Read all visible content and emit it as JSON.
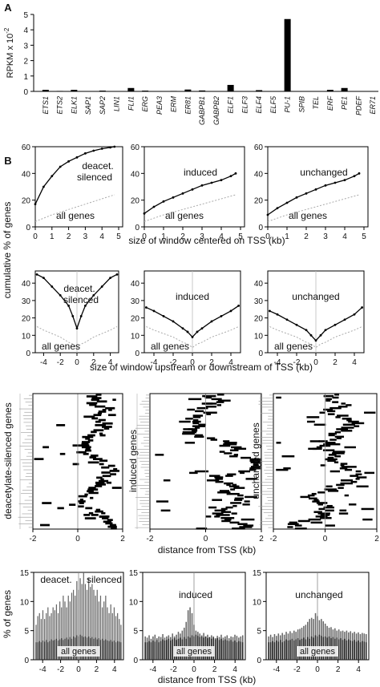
{
  "panels": {
    "a": "A",
    "b": "B"
  },
  "chart_data": [
    {
      "type": "bar",
      "id": "rpkm",
      "ylabel": "RPKM x 10",
      "ylabel_exp": "-2",
      "ylim": [
        0,
        5
      ],
      "yticks": [
        0,
        1,
        2,
        3,
        4,
        5
      ],
      "categories": [
        "ETS1",
        "ETS2",
        "ELK1",
        "SAP1",
        "SAP2",
        "LIN1",
        "FLI1",
        "ERG",
        "PEA3",
        "ERM",
        "ER81",
        "GABPB1",
        "GABPB2",
        "ELF1",
        "ELF3",
        "ELF4",
        "ELF5",
        "PU-1",
        "SPIB",
        "TEL",
        "ERF",
        "PE1",
        "PDEF",
        "ER71"
      ],
      "values": [
        0.1,
        0.03,
        0.1,
        0.02,
        0.05,
        0.02,
        0.22,
        0.05,
        0.02,
        0.03,
        0.12,
        0.06,
        0.02,
        0.42,
        0.02,
        0.08,
        0.02,
        4.7,
        0.02,
        0.02,
        0.1,
        0.22,
        0.02,
        0.02
      ]
    },
    {
      "type": "line",
      "id": "cum1",
      "xlabel": "size of window centered on TSS (kb)",
      "ylabel": "cumulative % of genes",
      "xlim": [
        0,
        5
      ],
      "ylim": [
        0,
        60
      ],
      "xticks": [
        0,
        1,
        2,
        3,
        4,
        5
      ],
      "yticks": [
        0,
        20,
        40,
        60
      ],
      "panels": [
        {
          "name": "deacet. silenced",
          "labels": [
            "deacet.",
            "silenced"
          ],
          "others": "all genes",
          "x": [
            0,
            0.5,
            1,
            1.5,
            2,
            2.5,
            3,
            3.5,
            4,
            4.5,
            4.75
          ],
          "values": [
            17,
            30,
            38,
            45,
            49,
            52,
            55,
            57,
            58.5,
            59.5,
            60
          ],
          "others_values": [
            4,
            6.5,
            9,
            11,
            13,
            15,
            17,
            19,
            21,
            23,
            24
          ]
        },
        {
          "name": "induced",
          "labels": [
            "induced"
          ],
          "others": "all genes",
          "x": [
            0,
            0.5,
            1,
            1.5,
            2,
            2.5,
            3,
            3.5,
            4,
            4.5,
            4.75
          ],
          "values": [
            10,
            15,
            19,
            22,
            25,
            28,
            31,
            33,
            35,
            38,
            40
          ],
          "others_values": [
            4,
            6.5,
            9,
            11,
            13,
            15,
            17,
            19,
            21,
            23,
            24
          ]
        },
        {
          "name": "unchanged",
          "labels": [
            "unchanged"
          ],
          "others": "all genes",
          "x": [
            0,
            0.5,
            1,
            1.5,
            2,
            2.5,
            3,
            3.5,
            4,
            4.5,
            4.75
          ],
          "values": [
            9,
            14,
            18,
            22,
            25,
            28,
            31,
            33,
            35,
            38,
            40
          ],
          "others_values": [
            4,
            6.5,
            9,
            11,
            13,
            15,
            17,
            19,
            21,
            23,
            24
          ]
        }
      ]
    },
    {
      "type": "line",
      "id": "cum2",
      "xlabel": "size of window upstream or downstream of TSS (kb)",
      "xlim": [
        -5,
        5
      ],
      "ylim": [
        0,
        47
      ],
      "xticks": [
        -4,
        -2,
        0,
        2,
        4
      ],
      "yticks": [
        0,
        10,
        20,
        30,
        40
      ],
      "panels": [
        {
          "name": "deacet. silenced",
          "labels": [
            "deacet.",
            "silenced"
          ],
          "others": "all genes",
          "x": [
            -4.8,
            -4,
            -3,
            -2,
            -1,
            -0.5,
            0,
            0.5,
            1,
            2,
            3,
            4,
            4.8
          ],
          "values": [
            45,
            43,
            38,
            33,
            27,
            21,
            14,
            21,
            27,
            33,
            38,
            43,
            45
          ],
          "others_values": [
            15,
            13,
            11,
            9,
            6,
            5,
            3,
            5,
            6,
            9,
            11,
            13,
            15
          ]
        },
        {
          "name": "induced",
          "labels": [
            "induced"
          ],
          "others": "all genes",
          "x": [
            -4.8,
            -4,
            -3,
            -2,
            -1,
            -0.5,
            0,
            0.5,
            1,
            2,
            3,
            4,
            4.8
          ],
          "values": [
            26,
            24,
            21,
            18,
            14,
            12,
            9,
            12,
            14,
            18,
            21,
            24,
            27
          ],
          "others_values": [
            15,
            13,
            11,
            9,
            6,
            5,
            3,
            5,
            6,
            9,
            11,
            13,
            15
          ]
        },
        {
          "name": "unchanged",
          "labels": [
            "unchanged"
          ],
          "others": "all genes",
          "x": [
            -4.8,
            -4,
            -3,
            -2,
            -1,
            -0.5,
            0,
            0.5,
            1,
            2,
            3,
            4,
            4.8
          ],
          "values": [
            24,
            22,
            19,
            16,
            13,
            10,
            7,
            10,
            13,
            16,
            19,
            22,
            26
          ],
          "others_values": [
            15,
            13,
            11,
            9,
            6,
            5,
            3,
            5,
            6,
            9,
            11,
            13,
            15
          ]
        }
      ]
    },
    {
      "type": "heatmap",
      "id": "heat",
      "xlabel": "distance from TSS (kb)",
      "xlim": [
        -2,
        2
      ],
      "xticks": [
        -2,
        0,
        2
      ],
      "panels": [
        {
          "name": "deacetylate-silenced genes",
          "rows": 80,
          "seed": 11,
          "tick_labels": [
            "-2",
            "0",
            "2"
          ]
        },
        {
          "name": "induced genes",
          "rows": 90,
          "seed": 23,
          "tick_labels": [
            "-2",
            "0",
            "2"
          ]
        },
        {
          "name": "unchanged genes",
          "rows": 90,
          "seed": 37,
          "tick_labels": [
            "-2",
            "0",
            "2"
          ]
        }
      ]
    },
    {
      "type": "bar",
      "id": "hist",
      "xlabel": "distance from TSS (kb)",
      "ylabel": "% of genes",
      "xlim": [
        -5,
        5
      ],
      "ylim": [
        0,
        15
      ],
      "xticks": [
        -4,
        -2,
        0,
        2,
        4
      ],
      "yticks": [
        0,
        5,
        10,
        15
      ],
      "others": "all genes",
      "panels": [
        {
          "name": "deacet. silenced",
          "labels": [
            "deacet.",
            "silenced"
          ],
          "values": [
            6,
            7.5,
            8,
            7,
            8.5,
            7,
            8,
            9,
            7.5,
            8,
            9,
            8.5,
            9.5,
            8,
            10,
            9,
            11,
            10,
            9,
            11,
            10,
            11.5,
            12,
            11,
            13.5,
            12,
            14,
            13,
            15,
            13,
            12,
            14,
            12.5,
            13,
            12,
            11,
            12,
            10,
            11,
            9,
            10,
            11,
            9,
            8,
            9.5,
            8,
            9,
            7.5,
            8,
            7,
            6
          ],
          "others_values": [
            3,
            3,
            3.2,
            3,
            3.3,
            3.1,
            3.4,
            3,
            3.2,
            3.5,
            3.3,
            3.4,
            3.6,
            3.3,
            3.5,
            3.7,
            3.4,
            3.6,
            3.8,
            3.5,
            3.9,
            3.6,
            4,
            3.8,
            4.2,
            4,
            4.3,
            4.1,
            3.9,
            4,
            3.8,
            4,
            3.7,
            3.9,
            3.6,
            3.8,
            3.5,
            3.7,
            3.4,
            3.6,
            3.3,
            3.5,
            3.3,
            3.2,
            3.4,
            3.1,
            3.3,
            3,
            3.2,
            3.1,
            3
          ]
        },
        {
          "name": "induced",
          "labels": [
            "induced"
          ],
          "values": [
            4,
            3.8,
            4.2,
            3.6,
            4,
            4.3,
            3.7,
            4,
            3.9,
            4.4,
            3.8,
            4,
            4.2,
            3.9,
            4.5,
            4,
            4.3,
            4.8,
            4.5,
            5,
            5.5,
            6.5,
            8.5,
            9,
            8,
            6,
            5,
            4.8,
            4.5,
            4.2,
            4.6,
            4,
            4.3,
            3.8,
            4.2,
            4,
            3.7,
            4.1,
            3.9,
            4.3,
            3.8,
            4,
            4.2,
            3.7,
            4,
            3.9,
            4.3,
            4.1,
            3.8,
            4,
            4.2
          ],
          "others_values": [
            3,
            3,
            3.2,
            3,
            3.3,
            3.1,
            3.4,
            3,
            3.2,
            3.5,
            3.3,
            3.4,
            3.6,
            3.3,
            3.5,
            3.7,
            3.4,
            3.6,
            3.8,
            3.5,
            3.9,
            3.6,
            4,
            3.8,
            4.2,
            4,
            4.3,
            4.1,
            3.9,
            4,
            3.8,
            4,
            3.7,
            3.9,
            3.6,
            3.8,
            3.5,
            3.7,
            3.4,
            3.6,
            3.3,
            3.5,
            3.3,
            3.2,
            3.4,
            3.1,
            3.3,
            3,
            3.2,
            3.1,
            3
          ]
        },
        {
          "name": "unchanged",
          "labels": [
            "unchanged"
          ],
          "values": [
            4,
            4.3,
            3.9,
            4.4,
            4.1,
            4.5,
            4.2,
            4.6,
            4.3,
            4.8,
            4.5,
            4.9,
            4.6,
            5,
            4.8,
            5.2,
            5.3,
            5.5,
            5.8,
            6,
            6.5,
            7,
            7.2,
            7,
            8,
            7.5,
            6.8,
            7,
            6.6,
            6.2,
            5.8,
            5.5,
            5.6,
            5.2,
            5.4,
            5,
            5.2,
            4.9,
            5,
            4.8,
            5,
            4.7,
            4.9,
            4.6,
            4.8,
            4.5,
            4.7,
            4.4,
            4.6,
            4.5,
            4.4
          ],
          "others_values": [
            3,
            3,
            3.2,
            3,
            3.3,
            3.1,
            3.4,
            3,
            3.2,
            3.5,
            3.3,
            3.4,
            3.6,
            3.3,
            3.5,
            3.7,
            3.4,
            3.6,
            3.8,
            3.5,
            3.9,
            3.6,
            4,
            3.8,
            4.2,
            4,
            4.3,
            4.1,
            3.9,
            4,
            3.8,
            4,
            3.7,
            3.9,
            3.6,
            3.8,
            3.5,
            3.7,
            3.4,
            3.6,
            3.3,
            3.5,
            3.3,
            3.2,
            3.4,
            3.1,
            3.3,
            3,
            3.2,
            3.1,
            3
          ]
        }
      ]
    }
  ]
}
